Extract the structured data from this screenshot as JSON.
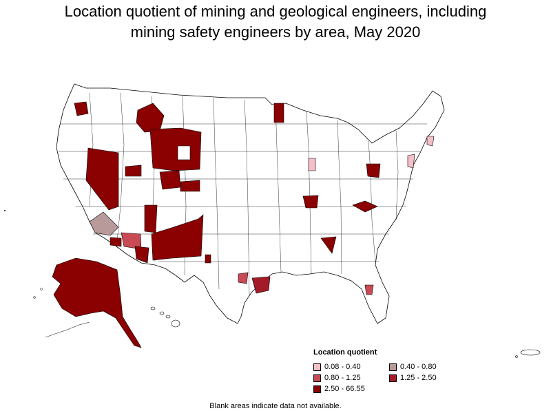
{
  "title_line1": "Location quotient of mining and geological engineers, including",
  "title_line2": "mining safety engineers by area, May 2020",
  "legend": {
    "title": "Location quotient",
    "items": [
      {
        "label": "0.08 - 0.40",
        "color": "#f4bfc7"
      },
      {
        "label": "0.40 - 0.80",
        "color": "#b89a9a"
      },
      {
        "label": "0.80 - 1.25",
        "color": "#c84a55"
      },
      {
        "label": "1.25 - 2.50",
        "color": "#a31a28"
      },
      {
        "label": "2.50 - 66.55",
        "color": "#8b0000"
      }
    ]
  },
  "footnote": "Blank areas indicate data not available.",
  "colors": {
    "outline": "#000000",
    "background": "#ffffff",
    "no_data": "#ffffff"
  }
}
